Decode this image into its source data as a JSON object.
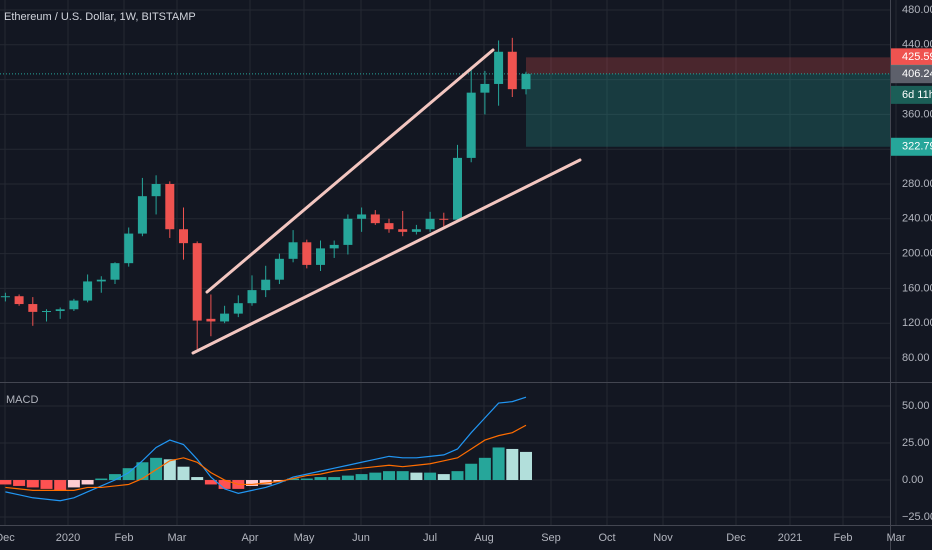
{
  "chart_data": [
    {
      "type": "candlestick",
      "title": "Ethereum / U.S. Dollar, 1W, BITSTAMP",
      "up_color": "#26a69a",
      "down_color": "#ef5350",
      "open": [
        150,
        151,
        142,
        133,
        134,
        136,
        146,
        168,
        170,
        189,
        223,
        266,
        280,
        228,
        212,
        125,
        122,
        131,
        143,
        158,
        170,
        194,
        213,
        187,
        206,
        210,
        240,
        245,
        235,
        228,
        225,
        228,
        240,
        239,
        310,
        385,
        395,
        432,
        389
      ],
      "high": [
        155,
        153,
        150,
        136,
        138,
        148,
        176,
        174,
        190,
        230,
        287,
        290,
        283,
        253,
        214,
        153,
        140,
        152,
        175,
        186,
        200,
        227,
        216,
        215,
        215,
        245,
        253,
        250,
        240,
        249,
        233,
        248,
        247,
        325,
        415,
        410,
        445,
        448,
        409
      ],
      "low": [
        145,
        140,
        117,
        122,
        125,
        134,
        144,
        155,
        165,
        185,
        220,
        245,
        218,
        193,
        90,
        105,
        120,
        127,
        140,
        150,
        165,
        190,
        183,
        180,
        195,
        199,
        225,
        233,
        224,
        220,
        222,
        225,
        230,
        236,
        305,
        360,
        370,
        380,
        383
      ],
      "close": [
        151,
        142,
        133,
        134,
        136,
        146,
        168,
        170,
        189,
        223,
        266,
        280,
        228,
        212,
        123,
        122,
        131,
        143,
        158,
        170,
        194,
        213,
        187,
        206,
        210,
        240,
        245,
        235,
        228,
        225,
        228,
        240,
        239,
        310,
        385,
        395,
        432,
        389,
        406.59
      ],
      "ylim": [
        52.4,
        491.5
      ],
      "yticks": [
        {
          "value": 80,
          "label": "80.00"
        },
        {
          "value": 120,
          "label": "120.00"
        },
        {
          "value": 160,
          "label": "160.00"
        },
        {
          "value": 200,
          "label": "200.00"
        },
        {
          "value": 240,
          "label": "240.00"
        },
        {
          "value": 280,
          "label": "280.00"
        },
        {
          "value": 320,
          "label": "320.00"
        },
        {
          "value": 360,
          "label": "360.00"
        },
        {
          "value": 400,
          "label": "400.00"
        },
        {
          "value": 440,
          "label": "440.00"
        },
        {
          "value": 480,
          "label": "480.00"
        }
      ],
      "position": {
        "stop": 425.59,
        "entry": 406.59,
        "target": 322.79
      },
      "countdown": "6d 11h",
      "bid_price": 406.24
    },
    {
      "type": "macd",
      "title": "MACD",
      "series": [
        {
          "name": "Histogram",
          "colors": [
            "#26a69a",
            "#b2dfdb",
            "#ff5252",
            "#ffcdd2"
          ],
          "values": [
            -3,
            -4,
            -5,
            -6,
            -7,
            -5,
            -3,
            1,
            4,
            8,
            12,
            15,
            14,
            9,
            2,
            -3,
            -6,
            -6,
            -4,
            -3,
            -1,
            1,
            1,
            2,
            2,
            3,
            4,
            5,
            6,
            6,
            5,
            5,
            4,
            6,
            11,
            15,
            22,
            21,
            19
          ]
        },
        {
          "name": "MACD",
          "color": "#2196f3",
          "values": [
            -8,
            -10,
            -12,
            -13,
            -14,
            -12,
            -8,
            -4,
            0,
            5,
            13,
            22,
            27,
            24,
            14,
            2,
            -6,
            -9,
            -7,
            -5,
            -2,
            2,
            4,
            6,
            8,
            10,
            12,
            14,
            16,
            15,
            15,
            16,
            17,
            21,
            32,
            42,
            52,
            53,
            56
          ]
        },
        {
          "name": "Signal",
          "color": "#ff6d00",
          "values": [
            -5,
            -6,
            -7,
            -7,
            -7,
            -7,
            -5,
            -5,
            -4,
            -3,
            1,
            7,
            13,
            15,
            12,
            5,
            0,
            -3,
            -3,
            -2,
            -1,
            1,
            3,
            4,
            6,
            7,
            8,
            9,
            10,
            9,
            10,
            11,
            13,
            15,
            21,
            27,
            30,
            32,
            37
          ]
        }
      ],
      "ylim": [
        -30.4,
        64.9
      ],
      "yticks": [
        {
          "value": -25,
          "label": "−25.00"
        },
        {
          "value": 0,
          "label": "0.00"
        },
        {
          "value": 25,
          "label": "25.00"
        },
        {
          "value": 50,
          "label": "50.00"
        }
      ],
      "xlabels": [
        "Dec",
        "2020",
        "Feb",
        "Mar",
        "Apr",
        "May",
        "Jun",
        "Jul",
        "Aug",
        "Sep",
        "Oct",
        "Nov",
        "Dec",
        "2021",
        "Feb",
        "Mar"
      ]
    }
  ]
}
